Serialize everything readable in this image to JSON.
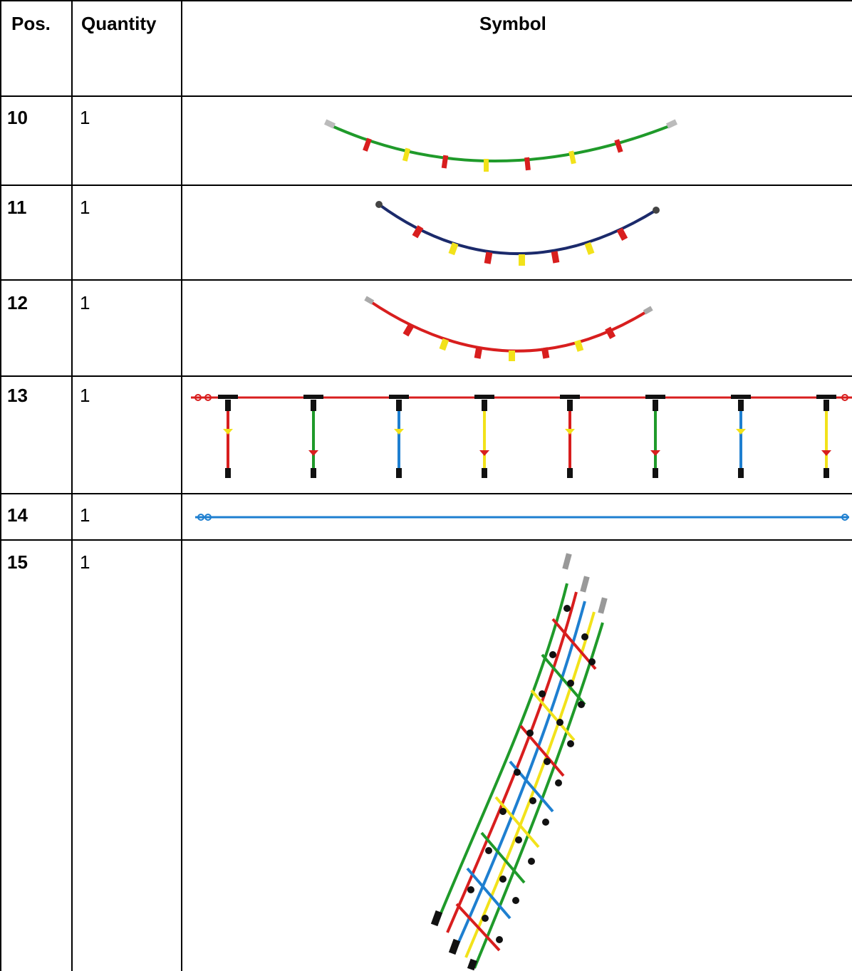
{
  "table": {
    "headers": {
      "pos": "Pos.",
      "quantity": "Quantity",
      "symbol": "Symbol"
    },
    "rows": [
      {
        "pos": "10",
        "quantity": "1",
        "symbol": "green-rope-arc-with-red-yellow-clamps"
      },
      {
        "pos": "11",
        "quantity": "1",
        "symbol": "navy-rope-arc-with-red-yellow-clamps"
      },
      {
        "pos": "12",
        "quantity": "1",
        "symbol": "red-rope-arc-with-red-yellow-clamps"
      },
      {
        "pos": "13",
        "quantity": "1",
        "symbol": "rope-bar-with-hanging-colored-drops"
      },
      {
        "pos": "14",
        "quantity": "1",
        "symbol": "straight-blue-rope"
      },
      {
        "pos": "15",
        "quantity": "1",
        "symbol": "colored-rope-net-ladder"
      }
    ]
  },
  "colors": {
    "green": "#1f9a2a",
    "navy": "#1b2a6b",
    "red": "#d81e1e",
    "yellow": "#f2e21a",
    "blue": "#1e7fd0",
    "black": "#111111"
  }
}
